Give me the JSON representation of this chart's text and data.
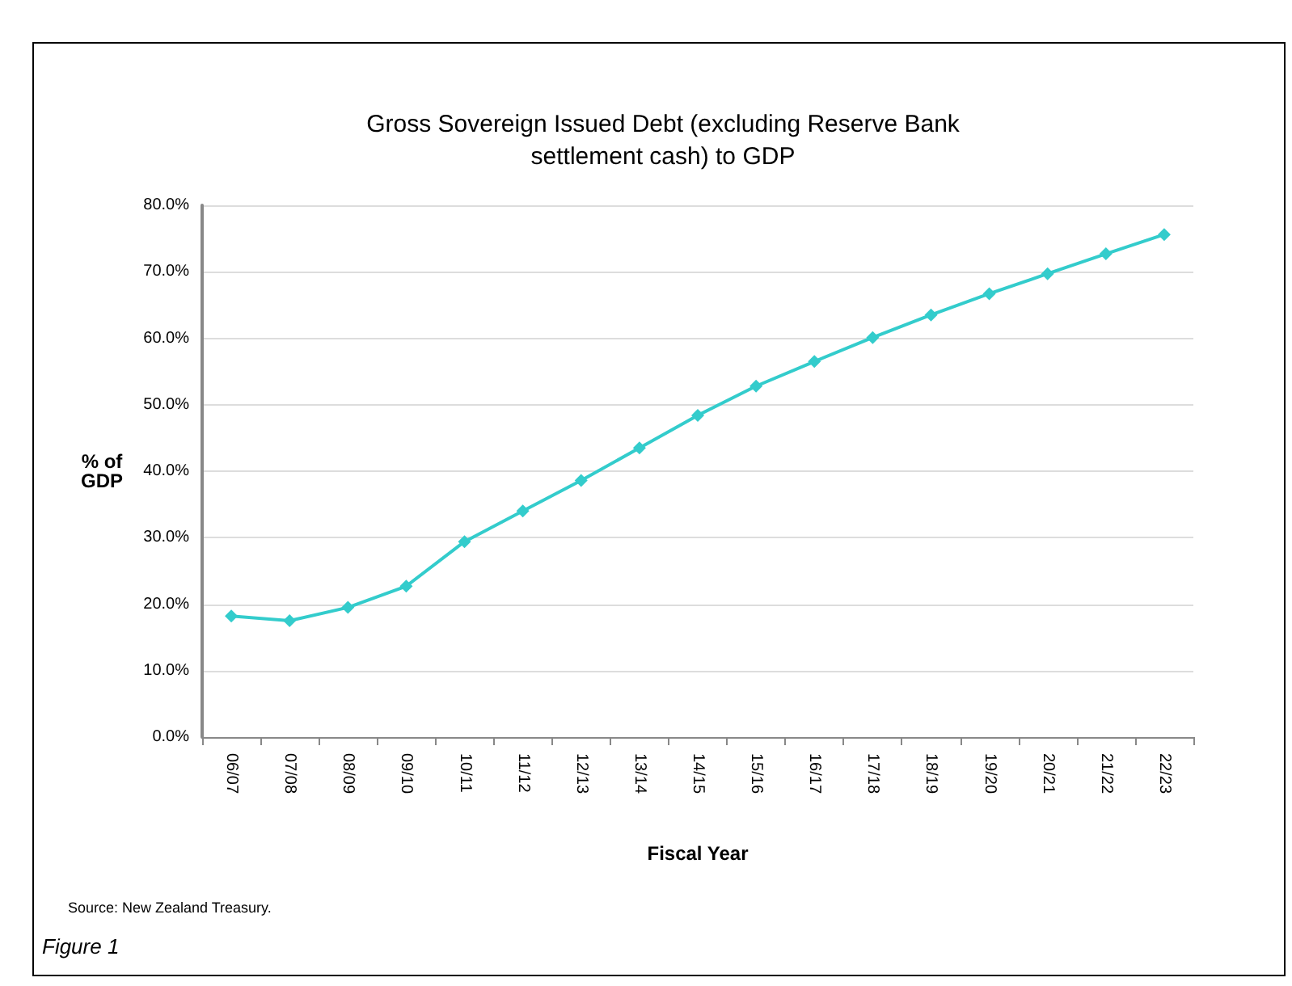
{
  "chart_data": {
    "type": "line",
    "title": "Gross Sovereign Issued Debt (excluding Reserve Bank\nsettlement cash) to GDP",
    "xlabel": "Fiscal Year",
    "ylabel": "% of\nGDP",
    "categories": [
      "06/07",
      "07/08",
      "08/09",
      "09/10",
      "10/11",
      "11/12",
      "12/13",
      "13/14",
      "14/15",
      "15/16",
      "16/17",
      "17/18",
      "18/19",
      "19/20",
      "20/21",
      "21/22",
      "22/23"
    ],
    "series": [
      {
        "color": "#33cccc",
        "values": [
          18.2,
          17.5,
          19.5,
          22.7,
          29.4,
          34.0,
          38.6,
          43.5,
          48.4,
          52.8,
          56.5,
          60.1,
          63.5,
          66.7,
          69.7,
          72.7,
          75.6
        ]
      }
    ],
    "ylim": [
      0,
      80
    ],
    "yticks": [
      {
        "value": 0,
        "label": "0.0%"
      },
      {
        "value": 10,
        "label": "10.0%"
      },
      {
        "value": 20,
        "label": "20.0%"
      },
      {
        "value": 30,
        "label": "30.0%"
      },
      {
        "value": 40,
        "label": "40.0%"
      },
      {
        "value": 50,
        "label": "50.0%"
      },
      {
        "value": 60,
        "label": "60.0%"
      },
      {
        "value": 70,
        "label": "70.0%"
      },
      {
        "value": 80,
        "label": "80.0%"
      }
    ],
    "grid": "y",
    "marker": "diamond",
    "line_style": "solid",
    "annotations": [
      "Source: New Zealand Treasury.",
      "Figure 1"
    ]
  }
}
